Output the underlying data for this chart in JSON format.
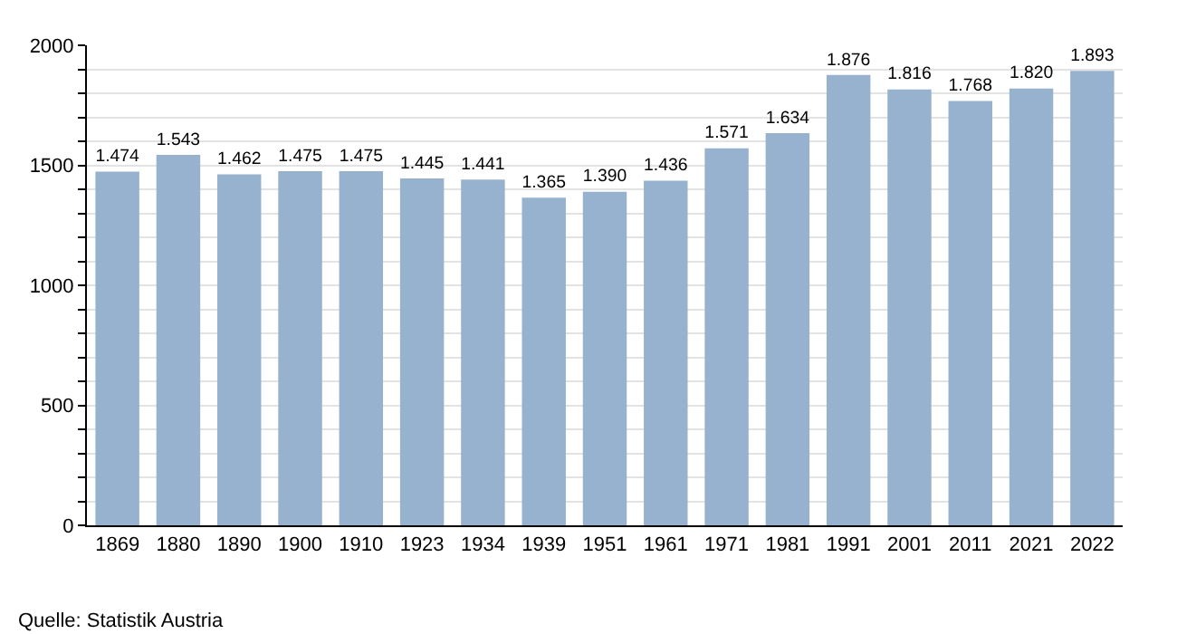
{
  "chart_data": {
    "type": "bar",
    "categories": [
      "1869",
      "1880",
      "1890",
      "1900",
      "1910",
      "1923",
      "1934",
      "1939",
      "1951",
      "1961",
      "1971",
      "1981",
      "1991",
      "2001",
      "2011",
      "2021",
      "2022"
    ],
    "values": [
      1474,
      1543,
      1462,
      1475,
      1475,
      1445,
      1441,
      1365,
      1390,
      1436,
      1571,
      1634,
      1876,
      1816,
      1768,
      1820,
      1893
    ],
    "value_labels": [
      "1.474",
      "1.543",
      "1.462",
      "1.475",
      "1.475",
      "1.445",
      "1.441",
      "1.365",
      "1.390",
      "1.436",
      "1.571",
      "1.634",
      "1.876",
      "1.816",
      "1.768",
      "1.820",
      "1.893"
    ],
    "color": "#97b2cf",
    "ylim": [
      0,
      2000
    ],
    "yticks": [
      0,
      {
        "value": 100,
        "label": null
      },
      {
        "value": 200,
        "label": null
      },
      {
        "value": 300,
        "label": null
      },
      {
        "value": 400,
        "label": null
      },
      500,
      {
        "value": 600,
        "label": null
      },
      {
        "value": 700,
        "label": null
      },
      {
        "value": 800,
        "label": null
      },
      {
        "value": 900,
        "label": null
      },
      1000,
      {
        "value": 1100,
        "label": null
      },
      {
        "value": 1200,
        "label": null
      },
      {
        "value": 1300,
        "label": null
      },
      {
        "value": 1400,
        "label": null
      },
      1500,
      {
        "value": 1600,
        "label": null
      },
      {
        "value": 1700,
        "label": null
      },
      {
        "value": 1800,
        "label": null
      },
      {
        "value": 1900,
        "label": null
      },
      2000
    ],
    "grid": "y",
    "legend": false,
    "annotations": [
      "Quelle: Statistik Austria"
    ]
  }
}
